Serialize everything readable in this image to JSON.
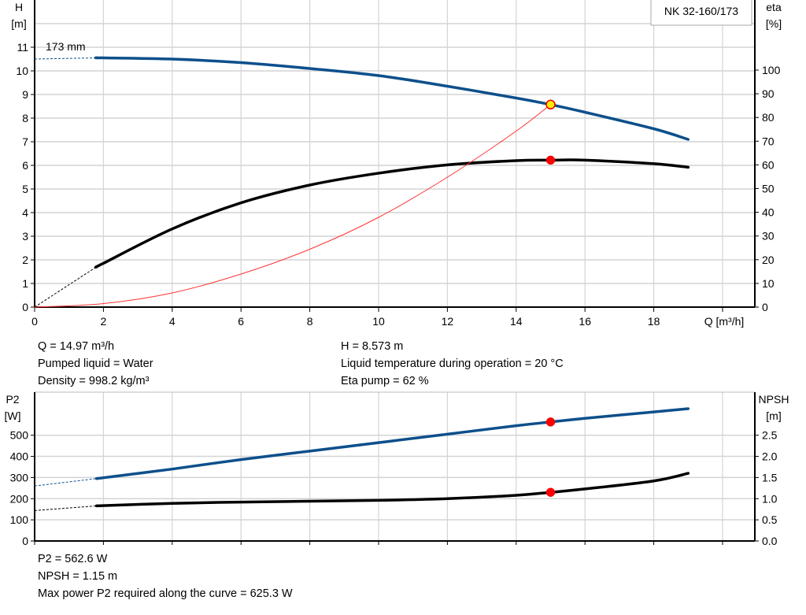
{
  "chart_data": [
    {
      "type": "line",
      "model_label": "NK 32-160/173",
      "impeller_label": "173 mm",
      "xlabel": "Q [m³/h]",
      "ylabel_left": [
        "H",
        "[m]"
      ],
      "ylabel_right": [
        "eta",
        "[%]"
      ],
      "xlim": [
        0,
        21
      ],
      "ylim_left": [
        0,
        13
      ],
      "ylim_right": [
        0,
        130
      ],
      "x_ticks": [
        0,
        2,
        4,
        6,
        8,
        10,
        12,
        14,
        16,
        18
      ],
      "y_ticks_left": [
        0,
        1,
        2,
        3,
        4,
        5,
        6,
        7,
        8,
        9,
        10,
        11
      ],
      "y_ticks_right": [
        0,
        10,
        20,
        30,
        40,
        50,
        60,
        70,
        80,
        90,
        100
      ],
      "grid": true,
      "series": [
        {
          "axis": "left",
          "color": "#0d4f8b",
          "x": [
            1.8,
            2,
            4,
            6,
            8,
            10,
            12,
            14,
            15,
            16,
            18,
            19
          ],
          "y": [
            10.55,
            10.55,
            10.5,
            10.35,
            10.1,
            9.8,
            9.35,
            8.85,
            8.573,
            8.25,
            7.55,
            7.1
          ],
          "extension": {
            "x": [
              0,
              1.8
            ],
            "y": [
              10.5,
              10.55
            ]
          }
        },
        {
          "axis": "right",
          "color": "#000000",
          "x": [
            1.8,
            2,
            4,
            6,
            8,
            10,
            12,
            14,
            15,
            16,
            18,
            19
          ],
          "y": [
            17,
            18.5,
            33,
            44,
            51.5,
            56.5,
            60,
            61.8,
            62,
            62,
            60.5,
            59
          ],
          "extension": {
            "x": [
              0,
              1.8
            ],
            "y": [
              0,
              17
            ]
          }
        },
        {
          "axis": "left",
          "color": "#ff3333",
          "x": [
            0,
            2,
            4,
            6,
            8,
            10,
            12,
            14,
            15
          ],
          "y": [
            0,
            0.15,
            0.6,
            1.4,
            2.45,
            3.8,
            5.5,
            7.45,
            8.573
          ]
        }
      ],
      "points": [
        {
          "axis": "left",
          "x": 15,
          "y": 8.573,
          "color": "#ffee00"
        },
        {
          "axis": "right",
          "x": 15,
          "y": 62,
          "color": "#ff0000"
        }
      ]
    },
    {
      "type": "line",
      "ylabel_left": [
        "P2",
        "[W]"
      ],
      "ylabel_right": [
        "NPSH",
        "[m]"
      ],
      "xlim": [
        0,
        21
      ],
      "ylim_left": [
        0,
        700
      ],
      "ylim_right": [
        0,
        3.5
      ],
      "y_ticks_left": [
        0,
        100,
        200,
        300,
        400,
        500
      ],
      "y_ticks_right": [
        "0.0",
        "0.5",
        "1.0",
        "1.5",
        "2.0",
        "2.5"
      ],
      "grid": true,
      "series": [
        {
          "axis": "left",
          "color": "#0d4f8b",
          "x": [
            1.8,
            4,
            6,
            8,
            10,
            12,
            14,
            15,
            16,
            18,
            19
          ],
          "y": [
            295,
            340,
            385,
            425,
            465,
            505,
            545,
            562.6,
            580,
            610,
            625.3
          ],
          "extension": {
            "x": [
              0,
              1.8
            ],
            "y": [
              260,
              295
            ]
          }
        },
        {
          "axis": "right",
          "color": "#000000",
          "x": [
            1.8,
            4,
            6,
            8,
            10,
            12,
            14,
            15,
            16,
            18,
            19
          ],
          "y": [
            0.83,
            0.89,
            0.92,
            0.94,
            0.96,
            1.0,
            1.08,
            1.15,
            1.23,
            1.42,
            1.6
          ],
          "extension": {
            "x": [
              0,
              1.8
            ],
            "y": [
              0.72,
              0.83
            ]
          }
        }
      ],
      "points": [
        {
          "axis": "left",
          "x": 15,
          "y": 562.6,
          "color": "#ff0000"
        },
        {
          "axis": "right",
          "x": 15,
          "y": 1.15,
          "color": "#ff0000"
        }
      ]
    }
  ],
  "info_top": {
    "left": [
      "Q = 14.97 m³/h",
      "Pumped liquid = Water",
      "Density = 998.2 kg/m³"
    ],
    "right": [
      "H = 8.573 m",
      "Liquid temperature during operation = 20 °C",
      "Eta pump = 62 %"
    ]
  },
  "info_bottom": [
    "P2 = 562.6 W",
    "NPSH = 1.15 m",
    "Max power P2 required along the curve = 625.3 W"
  ]
}
